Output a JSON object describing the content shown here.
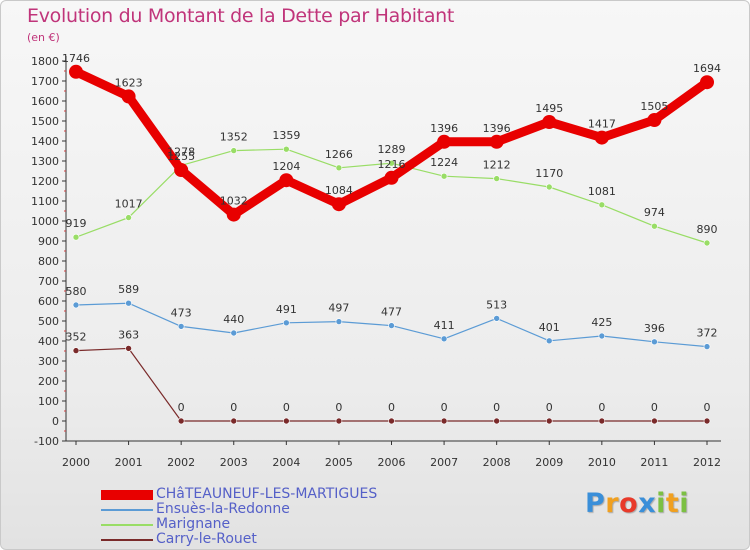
{
  "chart_data": {
    "type": "line",
    "title": "Evolution du Montant de la Dette par Habitant",
    "subtitle": "(en €)",
    "x": [
      "2000",
      "2001",
      "2002",
      "2003",
      "2004",
      "2005",
      "2006",
      "2007",
      "2008",
      "2009",
      "2010",
      "2011",
      "2012"
    ],
    "ylim": [
      -100,
      1800
    ],
    "yticks": [
      -100,
      0,
      100,
      200,
      300,
      400,
      500,
      600,
      700,
      800,
      900,
      1000,
      1100,
      1200,
      1300,
      1400,
      1500,
      1600,
      1700,
      1800
    ],
    "grid": false,
    "legend_position": "bottom-left",
    "series": [
      {
        "name": "CHâTEAUNEUF-LES-MARTIGUES",
        "color": "#e80000",
        "values": [
          1746,
          1623,
          1255,
          1032,
          1204,
          1084,
          1216,
          1396,
          1396,
          1495,
          1417,
          1505,
          1694
        ]
      },
      {
        "name": "Ensuès-la-Redonne",
        "color": "#5b9bd5",
        "values": [
          580,
          589,
          473,
          440,
          491,
          497,
          477,
          411,
          513,
          401,
          425,
          396,
          372
        ]
      },
      {
        "name": "Marignane",
        "color": "#99dd66",
        "values": [
          919,
          1017,
          1278,
          1352,
          1359,
          1266,
          1289,
          1224,
          1212,
          1170,
          1081,
          974,
          890
        ]
      },
      {
        "name": "Carry-le-Rouet",
        "color": "#7a2a2a",
        "values": [
          352,
          363,
          0,
          0,
          0,
          0,
          0,
          0,
          0,
          0,
          0,
          0,
          0
        ]
      }
    ]
  },
  "logo": {
    "letters": [
      "P",
      "r",
      "o",
      "x",
      "i",
      "t",
      "i"
    ]
  }
}
